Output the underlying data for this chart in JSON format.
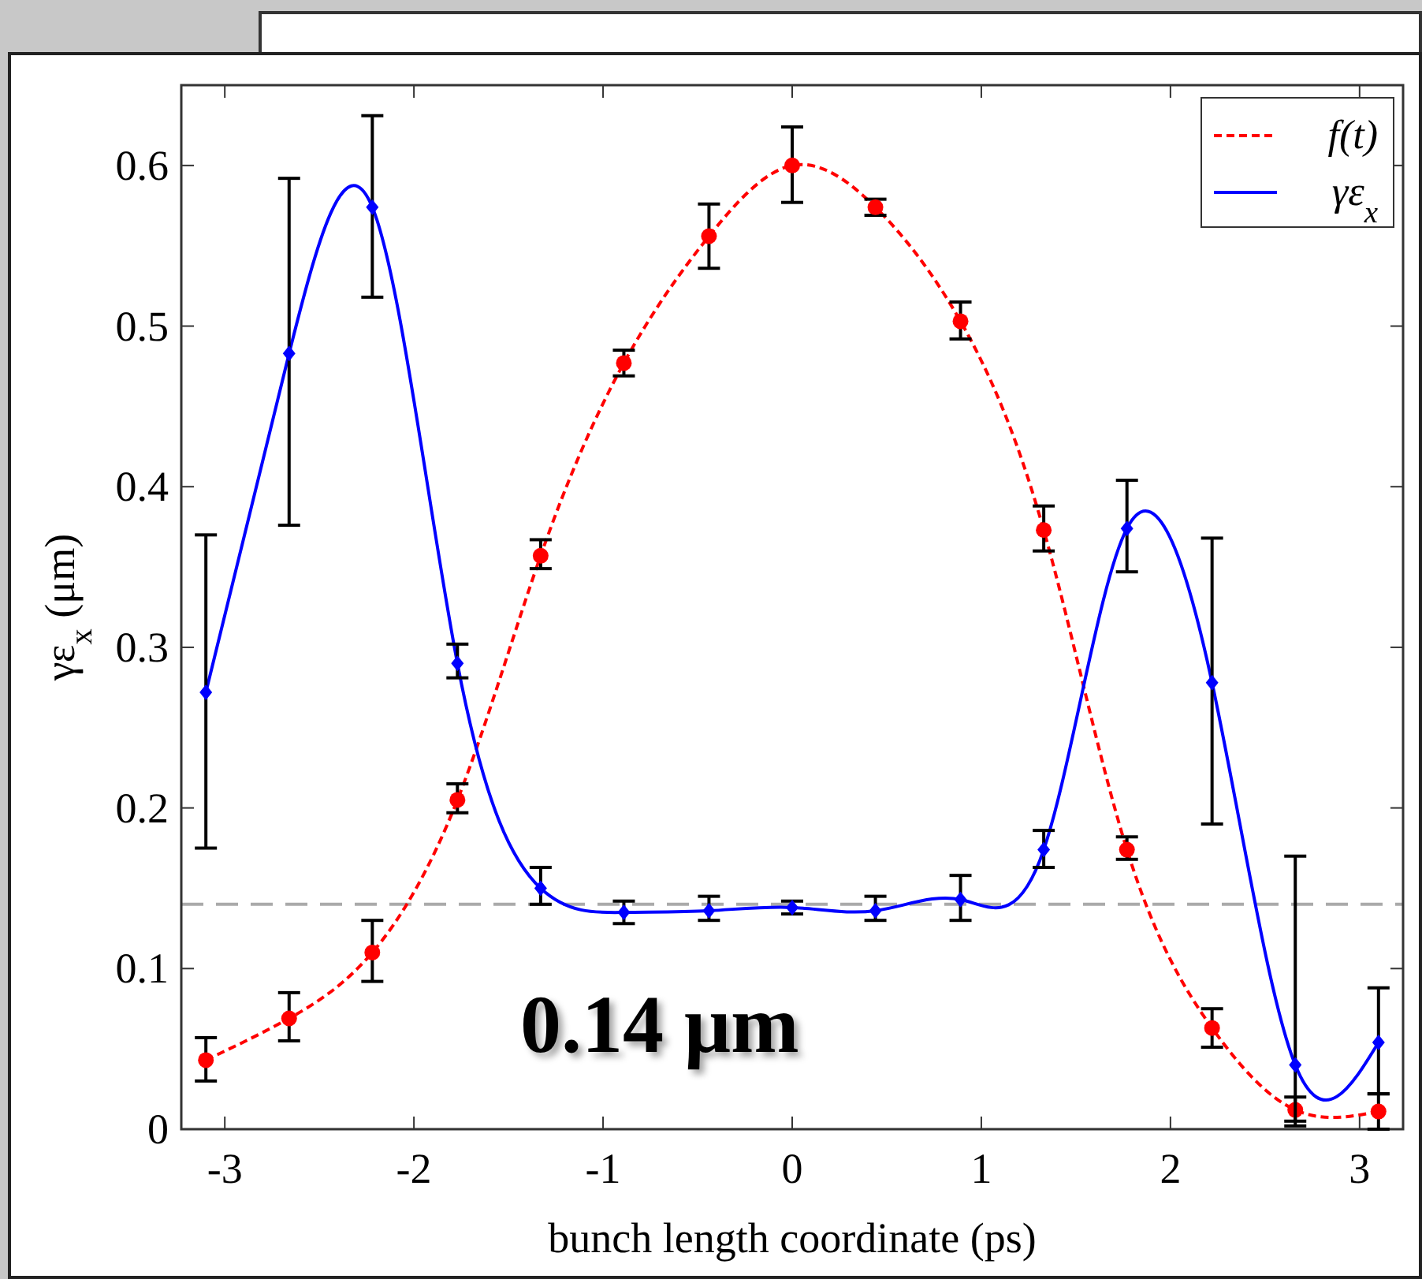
{
  "chart_data": {
    "type": "line",
    "xlabel": "bunch length coordinate (ps)",
    "ylabel": "γε$_{x}$ (μm)",
    "x": [
      -3.1,
      -2.66,
      -2.22,
      -1.77,
      -1.33,
      -0.89,
      -0.44,
      0,
      0.44,
      0.89,
      1.33,
      1.77,
      2.22,
      2.66,
      3.1
    ],
    "series": [
      {
        "name": "f(t)",
        "color": "#ff0000",
        "line_style": "dashed",
        "marker": "circle",
        "values": [
          0.043,
          0.069,
          0.11,
          0.205,
          0.357,
          0.477,
          0.556,
          0.6,
          0.574,
          0.503,
          0.373,
          0.174,
          0.063,
          0.012,
          0.011
        ],
        "errors": [
          [
            0.03,
            0.057
          ],
          [
            0.055,
            0.085
          ],
          [
            0.092,
            0.13
          ],
          [
            0.197,
            0.215
          ],
          [
            0.349,
            0.367
          ],
          [
            0.469,
            0.485
          ],
          [
            0.536,
            0.576
          ],
          [
            0.577,
            0.624
          ],
          [
            0.569,
            0.579
          ],
          [
            0.492,
            0.515
          ],
          [
            0.36,
            0.388
          ],
          [
            0.168,
            0.182
          ],
          [
            0.051,
            0.075
          ],
          [
            0.002,
            0.02
          ],
          [
            0.0,
            0.022
          ]
        ]
      },
      {
        "name": "γε$_{x}$",
        "color": "#0000ff",
        "line_style": "solid",
        "marker": "diamond",
        "values": [
          0.272,
          0.483,
          0.574,
          0.29,
          0.15,
          0.135,
          0.136,
          0.138,
          0.136,
          0.143,
          0.174,
          0.374,
          0.278,
          0.04,
          0.054
        ],
        "errors": [
          [
            0.175,
            0.37
          ],
          [
            0.376,
            0.592
          ],
          [
            0.518,
            0.631
          ],
          [
            0.281,
            0.302
          ],
          [
            0.14,
            0.163
          ],
          [
            0.128,
            0.142
          ],
          [
            0.13,
            0.145
          ],
          [
            0.134,
            0.142
          ],
          [
            0.13,
            0.145
          ],
          [
            0.13,
            0.158
          ],
          [
            0.163,
            0.186
          ],
          [
            0.347,
            0.404
          ],
          [
            0.19,
            0.368
          ],
          [
            0.005,
            0.17
          ],
          [
            0.022,
            0.088
          ]
        ]
      }
    ],
    "xlim": [
      -3.23,
      3.23
    ],
    "xticks": [
      -3,
      -2,
      -1,
      0,
      1,
      2,
      3
    ],
    "ylim": [
      0,
      0.65
    ],
    "yticks": [
      0,
      0.1,
      0.2,
      0.3,
      0.4,
      0.5,
      0.6
    ],
    "ref_lines": [
      {
        "axis": "y",
        "value": 0.14,
        "color": "#aaaaaa",
        "line_style": "dashed"
      }
    ],
    "annotations": [
      "0.14 μm"
    ],
    "legend": "top right",
    "grid": false
  }
}
